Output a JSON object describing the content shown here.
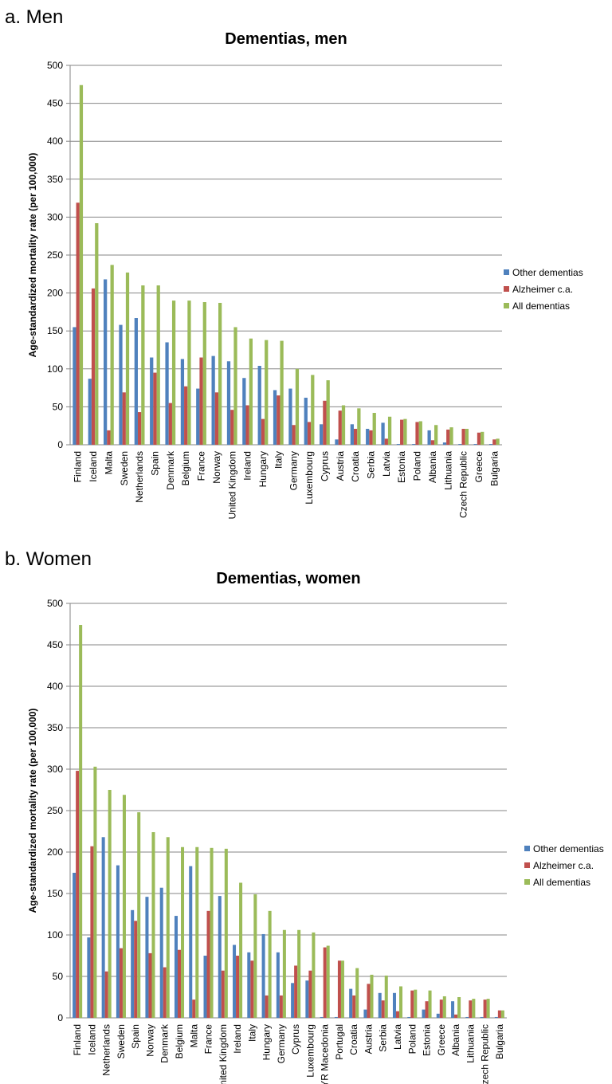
{
  "panels": [
    {
      "label": "a. Men"
    },
    {
      "label": "b. Women"
    }
  ],
  "colors": {
    "other": "#4F81BD",
    "alzheimer": "#C0504D",
    "all": "#9BBB59",
    "grid": "#868686"
  },
  "chart_data": [
    {
      "type": "bar",
      "title": "Dementias, men",
      "ylabel": "Age-standardized mortality rate (per 100,000)",
      "xlabel": "",
      "ylim": [
        0,
        500
      ],
      "yticks": [
        0,
        50,
        100,
        150,
        200,
        250,
        300,
        350,
        400,
        450,
        500
      ],
      "grid": true,
      "legend": "right",
      "categories": [
        "Finland",
        "Iceland",
        "Malta",
        "Sweden",
        "Netherlands",
        "Spain",
        "Denmark",
        "Belgium",
        "France",
        "Norway",
        "United Kingdom",
        "Ireland",
        "Hungary",
        "Italy",
        "Germany",
        "Luxembourg",
        "Cyprus",
        "Austria",
        "Croatia",
        "Serbia",
        "Latvia",
        "Estonia",
        "Poland",
        "Albania",
        "Lithuania",
        "Czech Republic",
        "Greece",
        "Bulgaria"
      ],
      "series": [
        {
          "name": "Other dementias",
          "values": [
            155,
            87,
            218,
            158,
            167,
            115,
            135,
            113,
            74,
            117,
            110,
            88,
            104,
            72,
            74,
            62,
            27,
            7,
            27,
            21,
            29,
            1,
            1,
            19,
            3,
            1,
            1,
            1
          ]
        },
        {
          "name": "Alzheimer c.a.",
          "values": [
            319,
            206,
            19,
            69,
            43,
            95,
            55,
            77,
            115,
            69,
            46,
            52,
            34,
            65,
            26,
            30,
            58,
            45,
            21,
            19,
            8,
            33,
            30,
            6,
            20,
            21,
            16,
            7
          ]
        },
        {
          "name": "All dementias",
          "values": [
            474,
            292,
            237,
            227,
            210,
            210,
            190,
            190,
            188,
            187,
            155,
            140,
            138,
            137,
            100,
            92,
            85,
            52,
            48,
            42,
            37,
            34,
            31,
            26,
            23,
            21,
            17,
            8
          ]
        }
      ]
    },
    {
      "type": "bar",
      "title": "Dementias, women",
      "ylabel": "Age-standardized mortality rate (per 100,000)",
      "xlabel": "",
      "ylim": [
        0,
        500
      ],
      "yticks": [
        0,
        50,
        100,
        150,
        200,
        250,
        300,
        350,
        400,
        450,
        500
      ],
      "grid": true,
      "legend": "right",
      "categories": [
        "Finland",
        "Iceland",
        "Netherlands",
        "Sweden",
        "Spain",
        "Norway",
        "Denmark",
        "Belgium",
        "Malta",
        "France",
        "United Kingdom",
        "Ireland",
        "Italy",
        "Hungary",
        "Germany",
        "Cyprus",
        "Luxembourg",
        "TFYR Macedonia",
        "Portugal",
        "Croatia",
        "Austria",
        "Serbia",
        "Latvia",
        "Poland",
        "Estonia",
        "Greece",
        "Albania",
        "Lithuania",
        "Czech Republic",
        "Bulgaria"
      ],
      "series": [
        {
          "name": "Other dementias",
          "values": [
            175,
            97,
            218,
            184,
            130,
            146,
            157,
            123,
            183,
            75,
            147,
            88,
            79,
            101,
            79,
            42,
            45,
            1,
            1,
            35,
            10,
            30,
            30,
            1,
            10,
            5,
            20,
            1,
            1,
            1
          ]
        },
        {
          "name": "Alzheimer c.a.",
          "values": [
            298,
            207,
            56,
            84,
            117,
            78,
            61,
            82,
            22,
            129,
            57,
            75,
            69,
            27,
            27,
            63,
            57,
            85,
            69,
            27,
            41,
            21,
            8,
            33,
            20,
            22,
            4,
            21,
            22,
            9
          ]
        },
        {
          "name": "All dementias",
          "values": [
            474,
            303,
            275,
            269,
            248,
            224,
            218,
            206,
            206,
            205,
            204,
            163,
            149,
            129,
            106,
            106,
            103,
            87,
            69,
            60,
            52,
            51,
            38,
            34,
            33,
            26,
            25,
            23,
            23,
            9
          ]
        }
      ]
    }
  ]
}
